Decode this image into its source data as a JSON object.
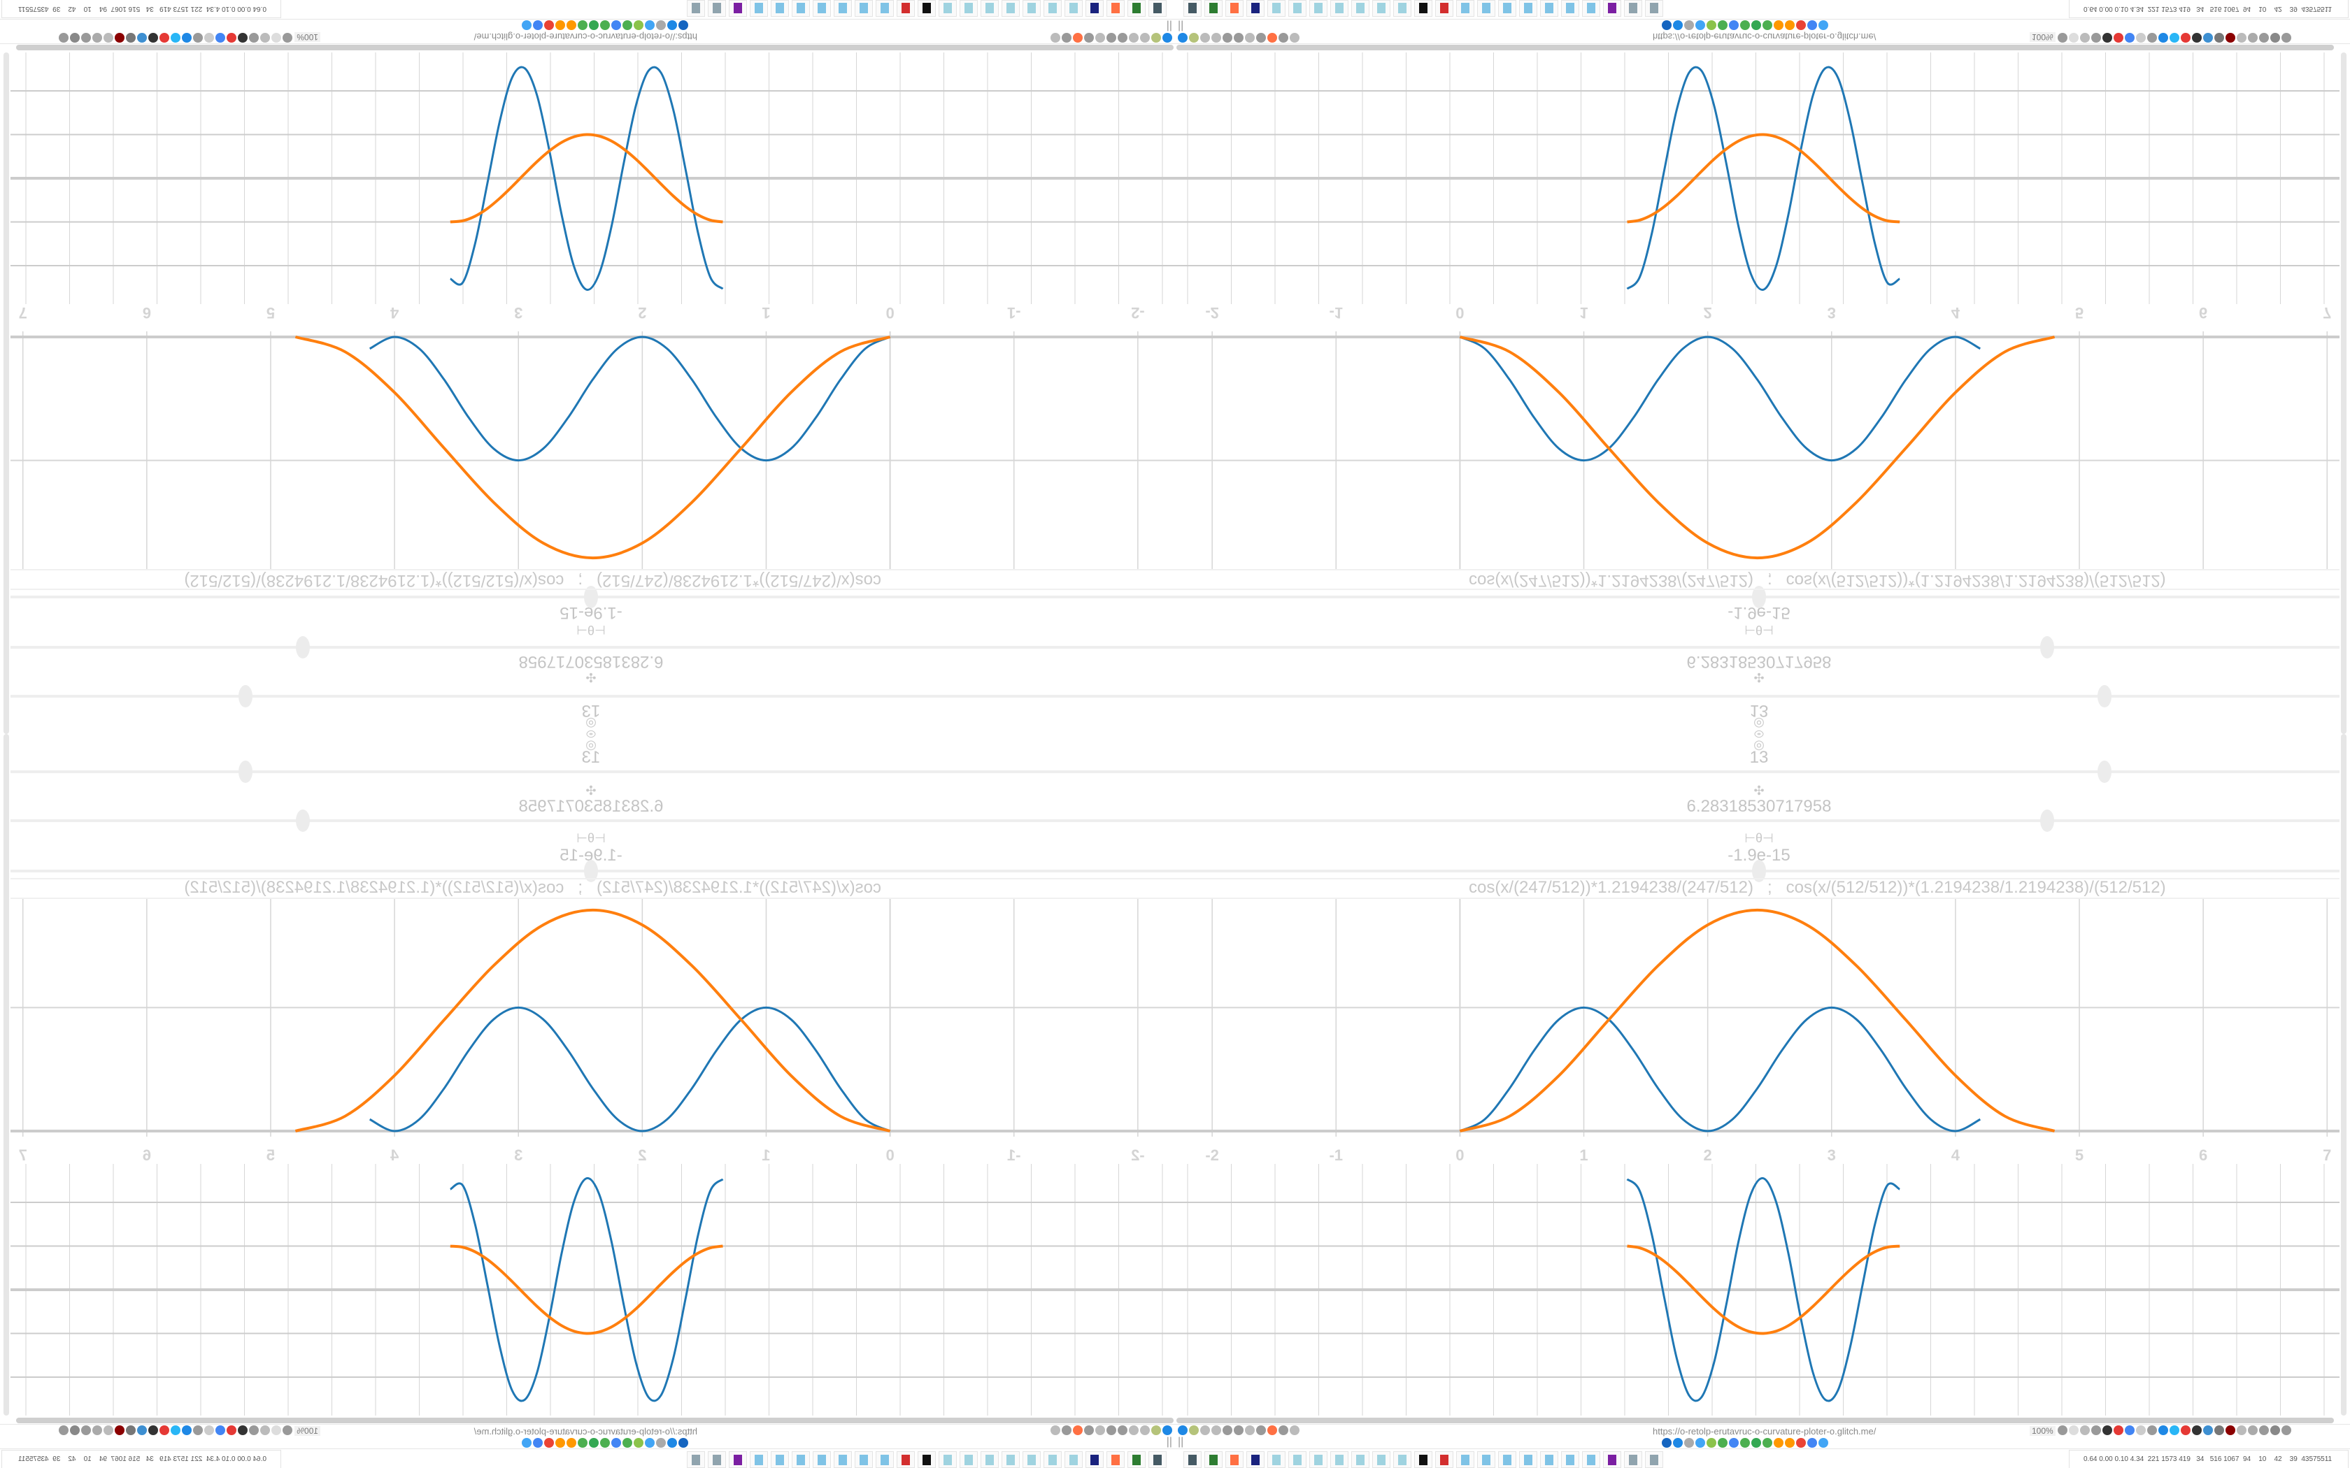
{
  "controls": [
    {
      "icon": "ring-icon",
      "value": "13",
      "slider_fraction": 0.79
    },
    {
      "icon": "club-icon",
      "value": "6.28318530717958",
      "slider_fraction": 0.745
    },
    {
      "icon": "theta-icon",
      "value": "-1.9e-15",
      "slider_fraction": 0.5
    }
  ],
  "formula": "cos(x/(247/512))*1.2194238/(247/512)   ;   cos(x/(512/512))*(1.2194238/1.2194238)/(512/512)",
  "icons": {
    "ring": "◎",
    "club": "✣",
    "theta": "⊢θ⊣"
  },
  "colors": {
    "series1": "#1f77b4",
    "series2": "#ff7f0e",
    "grid": "#d6d6d6",
    "axis": "#cccccc"
  },
  "x_ticks": [
    "-2",
    "-1",
    "0",
    "1",
    "2",
    "3",
    "4",
    "5",
    "6",
    "7"
  ],
  "chart_data": [
    {
      "type": "line",
      "xlim": [
        -2.3,
        7.1
      ],
      "ylim": [
        0,
        1.88
      ],
      "grid": true,
      "series": [
        {
          "color": "#1f77b4",
          "x": [
            0,
            0.2,
            0.4,
            0.6,
            0.8,
            1.0,
            1.2,
            1.4,
            1.6,
            1.8,
            2.0,
            2.2,
            2.4,
            2.6,
            2.8,
            3.0,
            3.2,
            3.4,
            3.6,
            3.8,
            4.0,
            4.2
          ],
          "y": [
            0,
            0.095,
            0.345,
            0.655,
            0.905,
            1,
            0.905,
            0.655,
            0.345,
            0.095,
            0,
            0.095,
            0.345,
            0.655,
            0.905,
            1,
            0.905,
            0.655,
            0.345,
            0.095,
            0,
            0.095
          ]
        },
        {
          "color": "#ff7f0e",
          "x": [
            0,
            0.4,
            0.8,
            1.2,
            1.6,
            2.0,
            2.4,
            2.8,
            3.2,
            3.6,
            4.0,
            4.4,
            4.8
          ],
          "y": [
            0,
            0.12,
            0.45,
            0.9,
            1.34,
            1.67,
            1.79,
            1.67,
            1.34,
            0.9,
            0.45,
            0.12,
            0
          ]
        }
      ]
    },
    {
      "type": "line",
      "xlim": [
        -2.3,
        7.1
      ],
      "ylim": [
        -2.88,
        2.88
      ],
      "grid": true,
      "series": [
        {
          "color": "#1f77b4",
          "x": [
            1.35,
            1.45,
            1.55,
            1.65,
            1.75,
            1.85,
            1.95,
            2.05,
            2.15,
            2.25,
            2.35,
            2.45,
            2.55,
            2.65,
            2.75,
            2.85,
            2.95,
            3.05,
            3.15,
            3.25,
            3.35,
            3.45,
            3.55
          ],
          "y": [
            2.53,
            2.27,
            1.25,
            -0.19,
            -1.57,
            -2.42,
            -2.46,
            -1.68,
            -0.34,
            1.12,
            2.2,
            2.55,
            2.03,
            0.85,
            -0.63,
            -1.9,
            -2.52,
            -2.31,
            -1.31,
            0.11,
            1.5,
            2.39,
            2.3
          ]
        },
        {
          "color": "#ff7f0e",
          "x": [
            1.35,
            1.45,
            1.55,
            1.65,
            1.75,
            1.85,
            1.95,
            2.05,
            2.15,
            2.25,
            2.35,
            2.45,
            2.55,
            2.65,
            2.75,
            2.85,
            2.95,
            3.05,
            3.15,
            3.25,
            3.35,
            3.45,
            3.55
          ],
          "y": [
            1,
            0.959,
            0.838,
            0.649,
            0.406,
            0.129,
            -0.158,
            -0.433,
            -0.67,
            -0.854,
            -0.967,
            -1,
            -0.95,
            -0.823,
            -0.627,
            -0.38,
            -0.101,
            0.186,
            0.457,
            0.692,
            0.869,
            0.974,
            0.998
          ]
        }
      ]
    }
  ],
  "browser": {
    "url": "https://o-retolp-erutavruc-o-curvature-ploter-o.glitch.me/",
    "zoom": "100%",
    "pause": "||",
    "left_icons": [
      "#1e88e5",
      "#b5c37a",
      "#bbb",
      "#bbb",
      "#999",
      "#999",
      "#bbb",
      "#999",
      "#ff7043",
      "#999",
      "#bbb"
    ],
    "right_icons": [
      "#999",
      "#ddd",
      "#bbb",
      "#999",
      "#333",
      "#e53935",
      "#4285f4",
      "#ccc",
      "#999",
      "#1e88e5",
      "#29b6f6",
      "#e53935",
      "#333",
      "#3d8fd1",
      "#777",
      "#8b0000",
      "#bbb",
      "#aaa",
      "#999",
      "#888",
      "#999"
    ],
    "bookmark_icons": [
      "#1565c0",
      "#1e88e5",
      "#aaa",
      "#42a5f5",
      "#8bc34a",
      "#4caf50",
      "#4285f4",
      "#4caf50",
      "#34a853",
      "#4caf50",
      "#ff9800",
      "#ff9800",
      "#ea4335",
      "#4285f4",
      "#42a5f5"
    ],
    "taskbar_icons": [
      "#455a64",
      "#2e7d32",
      "#ff7043",
      "#1a237e",
      "#9fd3e0",
      "#9fd3e0",
      "#9fd3e0",
      "#9fd3e0",
      "#9fd3e0",
      "#9fd3e0",
      "#9fd3e0",
      "#111",
      "#d32f2f",
      "#7fc3e6",
      "#7fc3e6",
      "#7fc3e6",
      "#7fc3e6",
      "#7fc3e6",
      "#7fc3e6",
      "#7fc3e6",
      "#7b1fa2",
      "#90a4ae",
      "#90a4ae"
    ],
    "status": "0.64 0.00 0.10 4.34  221 1573 419   34   516 1067  94    10    42    39  43575511"
  }
}
